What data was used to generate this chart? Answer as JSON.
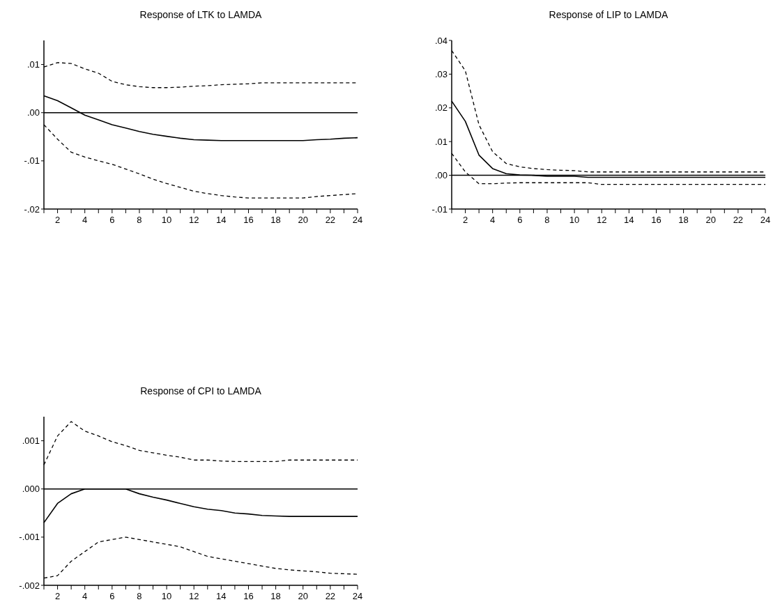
{
  "chart_data": [
    {
      "type": "line",
      "title": "Response of LTK to LAMDA",
      "x": [
        1,
        2,
        3,
        4,
        5,
        6,
        7,
        8,
        9,
        10,
        11,
        12,
        13,
        14,
        15,
        16,
        17,
        18,
        19,
        20,
        21,
        22,
        23,
        24
      ],
      "xlim": [
        1,
        24
      ],
      "xticks": [
        {
          "value": 1,
          "label": null
        },
        2,
        {
          "value": 3,
          "label": null
        },
        4,
        {
          "value": 5,
          "label": null
        },
        6,
        {
          "value": 7,
          "label": null
        },
        8,
        {
          "value": 9,
          "label": null
        },
        10,
        {
          "value": 11,
          "label": null
        },
        12,
        {
          "value": 13,
          "label": null
        },
        14,
        {
          "value": 15,
          "label": null
        },
        16,
        {
          "value": 17,
          "label": null
        },
        18,
        {
          "value": 19,
          "label": null
        },
        20,
        {
          "value": 21,
          "label": null
        },
        22,
        {
          "value": 23,
          "label": null
        },
        24
      ],
      "ylim": [
        -0.02,
        0.015
      ],
      "yticks": [
        {
          "value": 0.01,
          "label": ".01"
        },
        {
          "value": 0,
          "label": ".00"
        },
        {
          "value": -0.01,
          "label": "-.01"
        },
        {
          "value": -0.02,
          "label": "-.02"
        }
      ],
      "ref_lines": [
        {
          "axis": "y",
          "value": 0,
          "color": "#000000",
          "line_style": "solid"
        }
      ],
      "series": [
        {
          "color": "#000000",
          "line_style": "solid",
          "values": [
            0.0035,
            0.0025,
            0.001,
            -0.0005,
            -0.0015,
            -0.0025,
            -0.0032,
            -0.0039,
            -0.0045,
            -0.0049,
            -0.0053,
            -0.0056,
            -0.0057,
            -0.0058,
            -0.0058,
            -0.0058,
            -0.0058,
            -0.0058,
            -0.0058,
            -0.0058,
            -0.0056,
            -0.0055,
            -0.0053,
            -0.0052
          ]
        },
        {
          "color": "#000000",
          "line_style": "dashed",
          "values": [
            0.0095,
            0.0104,
            0.0102,
            0.0091,
            0.0082,
            0.0065,
            0.0058,
            0.0054,
            0.0052,
            0.0052,
            0.0053,
            0.0055,
            0.0056,
            0.0058,
            0.0059,
            0.006,
            0.0062,
            0.0062,
            0.0062,
            0.0062,
            0.0062,
            0.0062,
            0.0062,
            0.0062
          ]
        },
        {
          "color": "#000000",
          "line_style": "dashed",
          "values": [
            -0.0025,
            -0.0055,
            -0.0082,
            -0.0092,
            -0.01,
            -0.0107,
            -0.0117,
            -0.0127,
            -0.0138,
            -0.0147,
            -0.0155,
            -0.0163,
            -0.0168,
            -0.0172,
            -0.0175,
            -0.0177,
            -0.0177,
            -0.0177,
            -0.0177,
            -0.0177,
            -0.0174,
            -0.0172,
            -0.017,
            -0.0168
          ]
        }
      ]
    },
    {
      "type": "line",
      "title": "Response of LIP to LAMDA",
      "x": [
        1,
        2,
        3,
        4,
        5,
        6,
        7,
        8,
        9,
        10,
        11,
        12,
        13,
        14,
        15,
        16,
        17,
        18,
        19,
        20,
        21,
        22,
        23,
        24
      ],
      "xlim": [
        1,
        24
      ],
      "xticks": [
        {
          "value": 1,
          "label": null
        },
        2,
        {
          "value": 3,
          "label": null
        },
        4,
        {
          "value": 5,
          "label": null
        },
        6,
        {
          "value": 7,
          "label": null
        },
        8,
        {
          "value": 9,
          "label": null
        },
        10,
        {
          "value": 11,
          "label": null
        },
        12,
        {
          "value": 13,
          "label": null
        },
        14,
        {
          "value": 15,
          "label": null
        },
        16,
        {
          "value": 17,
          "label": null
        },
        18,
        {
          "value": 19,
          "label": null
        },
        20,
        {
          "value": 21,
          "label": null
        },
        22,
        {
          "value": 23,
          "label": null
        },
        24
      ],
      "ylim": [
        -0.01,
        0.04
      ],
      "yticks": [
        {
          "value": 0.04,
          "label": ".04"
        },
        {
          "value": 0.03,
          "label": ".03"
        },
        {
          "value": 0.02,
          "label": ".02"
        },
        {
          "value": 0.01,
          "label": ".01"
        },
        {
          "value": 0,
          "label": ".00"
        },
        {
          "value": -0.01,
          "label": "-.01"
        }
      ],
      "ref_lines": [
        {
          "axis": "y",
          "value": 0,
          "color": "#000000",
          "line_style": "solid"
        }
      ],
      "series": [
        {
          "color": "#000000",
          "line_style": "solid",
          "values": [
            0.022,
            0.016,
            0.006,
            0.002,
            0.0005,
            0.0001,
            0,
            -0.0003,
            -0.0003,
            -0.0003,
            -0.0006,
            -0.0006,
            -0.0006,
            -0.0006,
            -0.0006,
            -0.0006,
            -0.0006,
            -0.0006,
            -0.0006,
            -0.0006,
            -0.0006,
            -0.0006,
            -0.0006,
            -0.0006
          ]
        },
        {
          "color": "#000000",
          "line_style": "dashed",
          "values": [
            0.037,
            0.031,
            0.015,
            0.007,
            0.0035,
            0.0025,
            0.002,
            0.0017,
            0.0015,
            0.0014,
            0.001,
            0.001,
            0.001,
            0.001,
            0.001,
            0.001,
            0.001,
            0.001,
            0.001,
            0.001,
            0.001,
            0.001,
            0.001,
            0.001
          ]
        },
        {
          "color": "#000000",
          "line_style": "dashed",
          "values": [
            0.0065,
            0.001,
            -0.0025,
            -0.0025,
            -0.0023,
            -0.0022,
            -0.0022,
            -0.0022,
            -0.0022,
            -0.0022,
            -0.0022,
            -0.0027,
            -0.0027,
            -0.0027,
            -0.0027,
            -0.0027,
            -0.0027,
            -0.0027,
            -0.0027,
            -0.0027,
            -0.0027,
            -0.0027,
            -0.0027,
            -0.0027
          ]
        }
      ]
    },
    {
      "type": "line",
      "title": "Response of CPI to LAMDA",
      "x": [
        1,
        2,
        3,
        4,
        5,
        6,
        7,
        8,
        9,
        10,
        11,
        12,
        13,
        14,
        15,
        16,
        17,
        18,
        19,
        20,
        21,
        22,
        23,
        24
      ],
      "xlim": [
        1,
        24
      ],
      "xticks": [
        {
          "value": 1,
          "label": null
        },
        2,
        {
          "value": 3,
          "label": null
        },
        4,
        {
          "value": 5,
          "label": null
        },
        6,
        {
          "value": 7,
          "label": null
        },
        8,
        {
          "value": 9,
          "label": null
        },
        10,
        {
          "value": 11,
          "label": null
        },
        12,
        {
          "value": 13,
          "label": null
        },
        14,
        {
          "value": 15,
          "label": null
        },
        16,
        {
          "value": 17,
          "label": null
        },
        18,
        {
          "value": 19,
          "label": null
        },
        20,
        {
          "value": 21,
          "label": null
        },
        22,
        {
          "value": 23,
          "label": null
        },
        24
      ],
      "ylim": [
        -0.002,
        0.0015
      ],
      "yticks": [
        {
          "value": 0.001,
          "label": ".001"
        },
        {
          "value": 0,
          "label": ".000"
        },
        {
          "value": -0.001,
          "label": "-.001"
        },
        {
          "value": -0.002,
          "label": "-.002"
        }
      ],
      "ref_lines": [
        {
          "axis": "y",
          "value": 0,
          "color": "#000000",
          "line_style": "solid"
        }
      ],
      "series": [
        {
          "color": "#000000",
          "line_style": "solid",
          "values": [
            -0.0007,
            -0.0003,
            -0.0001,
            0,
            0,
            0,
            0,
            -0.0001,
            -0.00017,
            -0.00023,
            -0.0003,
            -0.00037,
            -0.00042,
            -0.00045,
            -0.0005,
            -0.00052,
            -0.00055,
            -0.00056,
            -0.00057,
            -0.00057,
            -0.00057,
            -0.00057,
            -0.00057,
            -0.00057
          ]
        },
        {
          "color": "#000000",
          "line_style": "dashed",
          "values": [
            0.0005,
            0.0011,
            0.0014,
            0.0012,
            0.0011,
            0.00098,
            0.0009,
            0.0008,
            0.00075,
            0.0007,
            0.00066,
            0.0006,
            0.0006,
            0.00058,
            0.00057,
            0.00057,
            0.00057,
            0.00057,
            0.0006,
            0.0006,
            0.0006,
            0.0006,
            0.0006,
            0.0006
          ]
        },
        {
          "color": "#000000",
          "line_style": "dashed",
          "values": [
            -0.00185,
            -0.0018,
            -0.0015,
            -0.0013,
            -0.0011,
            -0.00105,
            -0.001,
            -0.00105,
            -0.0011,
            -0.00115,
            -0.0012,
            -0.0013,
            -0.0014,
            -0.00145,
            -0.0015,
            -0.00155,
            -0.0016,
            -0.00165,
            -0.00168,
            -0.0017,
            -0.00172,
            -0.00175,
            -0.00176,
            -0.00177
          ]
        }
      ]
    }
  ]
}
